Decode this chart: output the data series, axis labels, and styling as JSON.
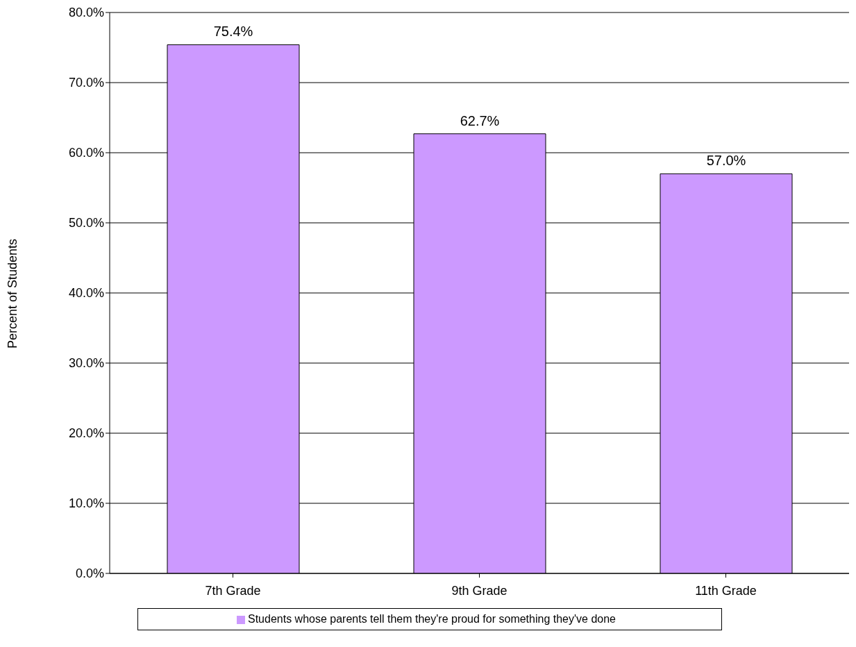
{
  "chart_data": {
    "type": "bar",
    "ylabel": "Percent of Students",
    "categories": [
      "7th Grade",
      "9th Grade",
      "11th Grade"
    ],
    "series": [
      {
        "name": "Students whose parents tell them they're proud for something they've done",
        "color": "#cc99ff",
        "values": [
          75.4,
          62.7,
          57.0
        ]
      }
    ],
    "value_labels": [
      "75.4%",
      "62.7%",
      "57.0%"
    ],
    "ylim": [
      0,
      80
    ],
    "yticks": [
      {
        "value": 0,
        "label": "0.0%"
      },
      {
        "value": 10,
        "label": "10.0%"
      },
      {
        "value": 20,
        "label": "20.0%"
      },
      {
        "value": 30,
        "label": "30.0%"
      },
      {
        "value": 40,
        "label": "40.0%"
      },
      {
        "value": 50,
        "label": "50.0%"
      },
      {
        "value": 60,
        "label": "60.0%"
      },
      {
        "value": 70,
        "label": "70.0%"
      },
      {
        "value": 80,
        "label": "80.0%"
      }
    ],
    "grid": "y",
    "legend": "bottom"
  }
}
